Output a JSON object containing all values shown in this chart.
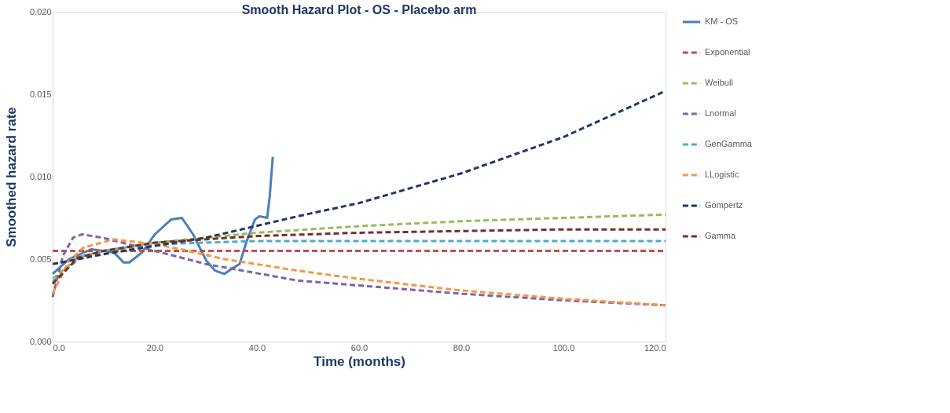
{
  "chart_data": {
    "type": "line",
    "title": "Smooth Hazard Plot - OS - Placebo arm",
    "xlabel": "Time (months)",
    "ylabel": "Smoothed hazard rate",
    "xlim": [
      0,
      120
    ],
    "xticks": [
      {
        "value": 0,
        "label": "0.0"
      },
      {
        "value": 20,
        "label": "20.0"
      },
      {
        "value": 40,
        "label": "40.0"
      },
      {
        "value": 60,
        "label": "60.0"
      },
      {
        "value": 80,
        "label": "80.0"
      },
      {
        "value": 100,
        "label": "100.0"
      },
      {
        "value": 120,
        "label": "120.0"
      }
    ],
    "ylim": [
      0,
      0.02
    ],
    "yticks": [
      {
        "value": 0,
        "label": "0.000"
      },
      {
        "value": 0.005,
        "label": "0.005"
      },
      {
        "value": 0.01,
        "label": "0.010"
      },
      {
        "value": 0.015,
        "label": "0.015"
      },
      {
        "value": 0.02,
        "label": "0.020"
      }
    ],
    "grid": false,
    "legend": "right",
    "marker": "none",
    "series": [
      {
        "name": "KM - OS",
        "color": "#4a7ebb",
        "line_style": "solid",
        "x": [
          0,
          3.2,
          7.6,
          12,
          13.9,
          15,
          17.5,
          20,
          23.2,
          25.3,
          27.5,
          30.1,
          31.8,
          33.6,
          35,
          36.6,
          37.9,
          39.6,
          40.5,
          42,
          42.5,
          43.1
        ],
        "values": [
          0.0041,
          0.005,
          0.0056,
          0.0054,
          0.0048,
          0.0048,
          0.0054,
          0.0065,
          0.0074,
          0.0075,
          0.0065,
          0.0049,
          0.0043,
          0.0041,
          0.0044,
          0.0047,
          0.006,
          0.0074,
          0.0076,
          0.0075,
          0.0088,
          0.0112
        ]
      },
      {
        "name": "Exponential",
        "color": "#c0504d",
        "line_style": "dashed",
        "x": [
          0,
          120
        ],
        "values": [
          0.0055,
          0.0055
        ]
      },
      {
        "name": "Weibull",
        "color": "#9bbb59",
        "line_style": "dashed",
        "x": [
          0,
          5,
          10,
          20,
          40,
          60,
          80,
          100,
          120
        ],
        "values": [
          0.0038,
          0.0051,
          0.0055,
          0.006,
          0.0066,
          0.007,
          0.0073,
          0.0075,
          0.0077
        ]
      },
      {
        "name": "Lnormal",
        "color": "#8064a2",
        "line_style": "dashed",
        "x": [
          0,
          2,
          4,
          5.8,
          9.7,
          20,
          30,
          39,
          48,
          60,
          80,
          100,
          120
        ],
        "values": [
          0.0027,
          0.0052,
          0.0063,
          0.0065,
          0.0063,
          0.0055,
          0.0047,
          0.0042,
          0.0037,
          0.0034,
          0.0029,
          0.0025,
          0.0022
        ]
      },
      {
        "name": "GenGamma",
        "color": "#4bacc6",
        "line_style": "dashed",
        "x": [
          0,
          5,
          10,
          20,
          40,
          60,
          80,
          100,
          120
        ],
        "values": [
          0.0036,
          0.005,
          0.0055,
          0.0059,
          0.0061,
          0.0061,
          0.0061,
          0.0061,
          0.0061
        ]
      },
      {
        "name": "LLogistic",
        "color": "#f79646",
        "line_style": "dashed",
        "x": [
          0,
          3,
          6,
          12,
          20,
          25,
          33.6,
          48,
          60,
          80,
          100,
          120
        ],
        "values": [
          0.0029,
          0.0048,
          0.0057,
          0.0062,
          0.0059,
          0.0056,
          0.005,
          0.0043,
          0.0038,
          0.0031,
          0.0026,
          0.0022
        ]
      },
      {
        "name": "Gompertz",
        "color": "#1f3864",
        "line_style": "dashed",
        "x": [
          0,
          10,
          20,
          30,
          48,
          60,
          80,
          100,
          120
        ],
        "values": [
          0.0047,
          0.0053,
          0.0058,
          0.0063,
          0.0076,
          0.0084,
          0.0102,
          0.0124,
          0.0152
        ]
      },
      {
        "name": "Gamma",
        "color": "#7b2c2c",
        "line_style": "dashed",
        "x": [
          0,
          5,
          10,
          20,
          40,
          60,
          80,
          100,
          120
        ],
        "values": [
          0.0035,
          0.0051,
          0.0055,
          0.006,
          0.0064,
          0.0066,
          0.0067,
          0.0068,
          0.0068
        ]
      }
    ]
  }
}
